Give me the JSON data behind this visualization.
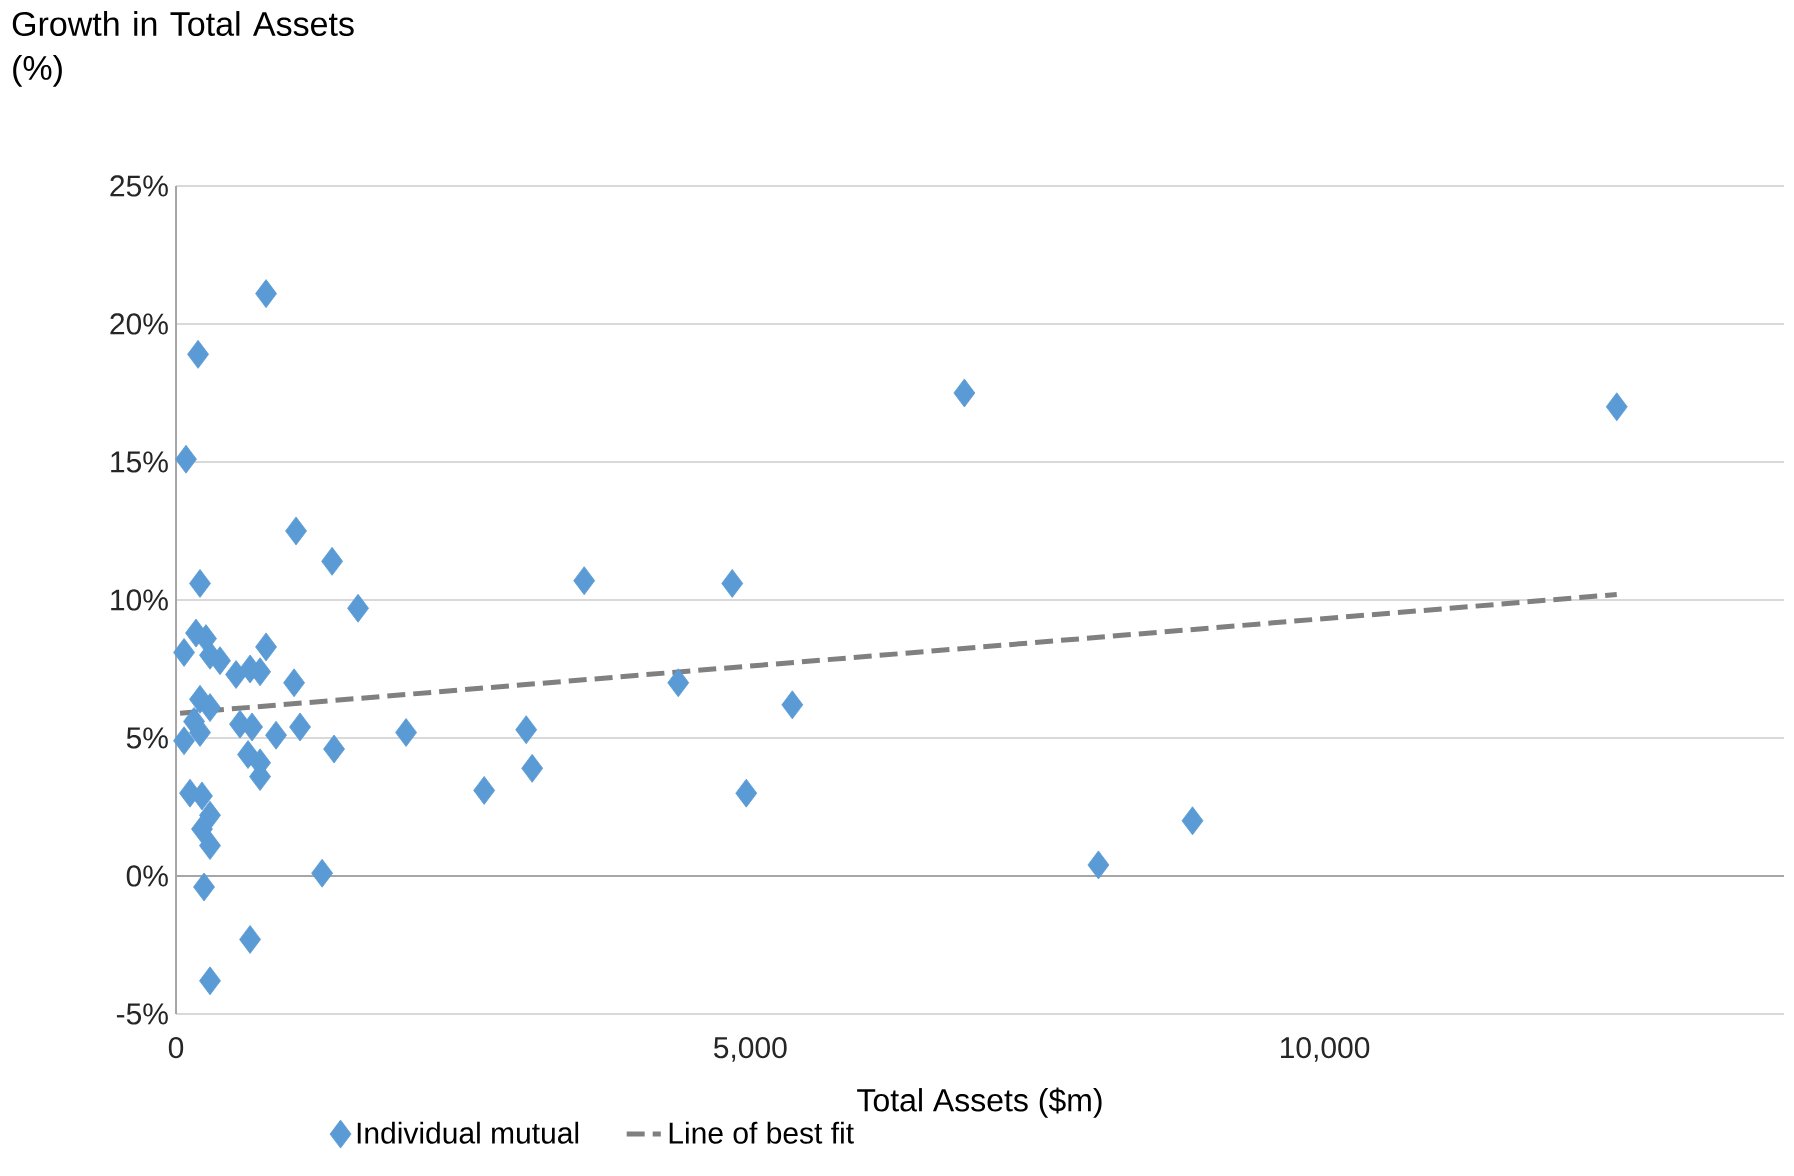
{
  "chart_data": {
    "type": "scatter",
    "ylabel": "Growth in Total Assets (%)",
    "xlabel": "Total Assets ($m)",
    "xlim": [
      0,
      14000
    ],
    "xticks": [
      {
        "value": 0,
        "label": "0"
      },
      {
        "value": 5000,
        "label": "5,000"
      },
      {
        "value": 10000,
        "label": "10,000"
      }
    ],
    "ylim": [
      -5,
      25
    ],
    "yticks": [
      {
        "value": -5,
        "label": "-5%"
      },
      {
        "value": 0,
        "label": "0%"
      },
      {
        "value": 5,
        "label": "5%"
      },
      {
        "value": 10,
        "label": "10%"
      },
      {
        "value": 15,
        "label": "15%"
      },
      {
        "value": 20,
        "label": "20%"
      },
      {
        "value": 25,
        "label": "25%"
      }
    ],
    "grid": "y",
    "legend": "bottom",
    "series": [
      {
        "name": "Individual mutual",
        "color": "#5b9bd5",
        "marker": "diamond",
        "x": [
          784,
          192,
          87,
          209,
          1045,
          1359,
          1585,
          784,
          70,
          174,
          261,
          296,
          383,
          523,
          645,
          732,
          1028,
          209,
          296,
          157,
          70,
          209,
          557,
          662,
          871,
          1080,
          1376,
          627,
          732,
          732,
          122,
          226,
          296,
          226,
          296,
          244,
          1272,
          645,
          296,
          2003,
          2683,
          3049,
          3101,
          3554,
          4373,
          4843,
          4965,
          5366,
          6864,
          8031,
          8850,
          12544
        ],
        "values": [
          21.1,
          18.9,
          15.1,
          10.6,
          12.5,
          11.4,
          9.7,
          8.3,
          8.1,
          8.8,
          8.6,
          8.0,
          7.8,
          7.3,
          7.5,
          7.4,
          7.0,
          6.4,
          6.1,
          5.6,
          4.9,
          5.2,
          5.5,
          5.4,
          5.1,
          5.4,
          4.6,
          4.4,
          4.1,
          3.6,
          3.0,
          2.9,
          2.2,
          1.7,
          1.1,
          -0.4,
          0.1,
          -2.3,
          -3.8,
          5.2,
          3.1,
          5.3,
          3.9,
          10.7,
          7.0,
          10.6,
          3.0,
          6.2,
          17.5,
          0.4,
          2.0,
          17.0
        ]
      },
      {
        "name": "Line of best fit",
        "type": "line",
        "color": "#808080",
        "line_style": "dashed",
        "marker": "none",
        "x": [
          35,
          12544
        ],
        "values": [
          5.9,
          10.2
        ]
      }
    ]
  }
}
